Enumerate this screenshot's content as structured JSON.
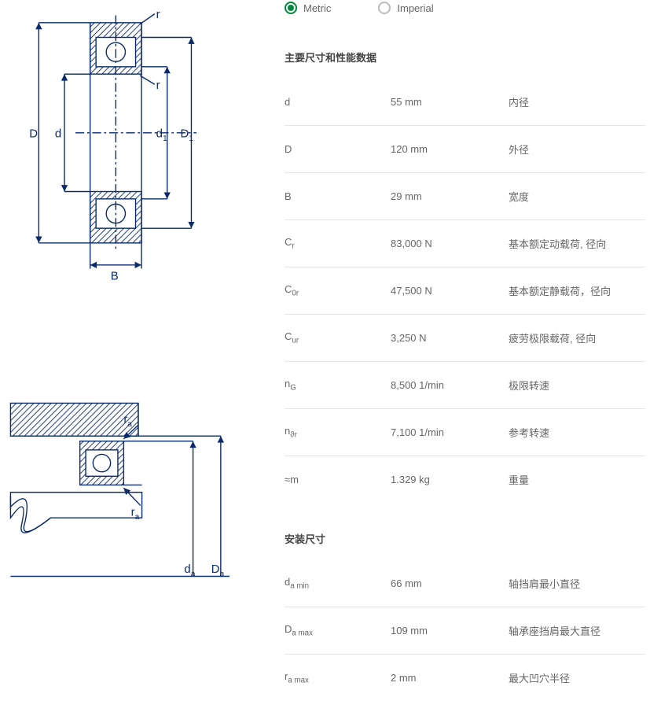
{
  "units": {
    "metric": "Metric",
    "imperial": "Imperial",
    "selected": "metric"
  },
  "sections": {
    "main": "主要尺寸和性能数据",
    "mounting": "安装尺寸"
  },
  "spec_main": [
    {
      "sym": "d",
      "val": "55 mm",
      "desc": "内径"
    },
    {
      "sym": "D",
      "val": "120 mm",
      "desc": "外径"
    },
    {
      "sym": "B",
      "val": "29 mm",
      "desc": "宽度"
    },
    {
      "sym_html": "C<sub class='sub'>r</sub>",
      "val": "83,000 N",
      "desc": "基本额定动载荷, 径向"
    },
    {
      "sym_html": "C<sub class='sub'>0r</sub>",
      "val": "47,500 N",
      "desc": "基本额定静载荷，径向"
    },
    {
      "sym_html": "C<sub class='sub'>ur</sub>",
      "val": "3,250 N",
      "desc": "疲劳极限载荷, 径向"
    },
    {
      "sym_html": "n<sub class='sub'>G</sub>",
      "val": "8,500 1/min",
      "desc": "极限转速"
    },
    {
      "sym_html": "n<sub class='sub'>ϑr</sub>",
      "val": "7,100 1/min",
      "desc": "参考转速"
    },
    {
      "sym": "≈m",
      "val": "1.329 kg",
      "desc": "重量"
    }
  ],
  "spec_mounting": [
    {
      "sym_html": "d<sub class='sub'>a min</sub>",
      "val": "66 mm",
      "desc": "轴挡肩最小直径"
    },
    {
      "sym_html": "D<sub class='sub'>a max</sub>",
      "val": "109 mm",
      "desc": "轴承座挡肩最大直径"
    },
    {
      "sym_html": "r<sub class='sub'>a max</sub>",
      "val": "2 mm",
      "desc": "最大凹穴半径"
    }
  ],
  "diagram1": {
    "labels": {
      "D": "D",
      "d": "d",
      "d1": "d",
      "d1_sub": "1",
      "D1": "D",
      "D1_sub": "1",
      "B": "B",
      "r1": "r",
      "r2": "r"
    },
    "stroke": "#0a2a6b",
    "hatch": "#0a2a6b"
  },
  "diagram2": {
    "labels": {
      "ra1": "r",
      "ra1_sub": "a",
      "ra2": "r",
      "ra2_sub": "a",
      "da": "d",
      "da_sub": "a",
      "Da": "D",
      "Da_sub": "a"
    },
    "stroke": "#0a2a6b"
  }
}
